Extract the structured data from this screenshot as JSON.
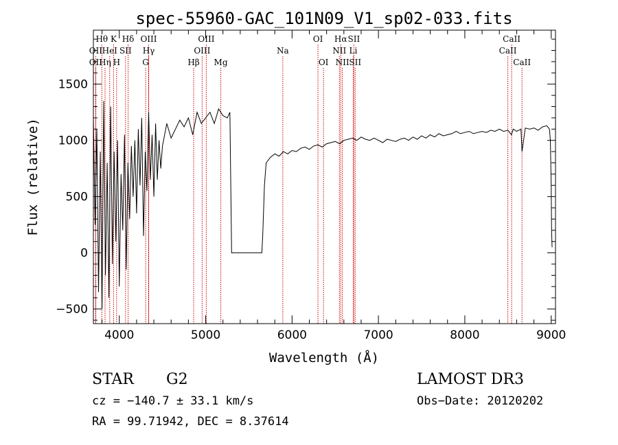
{
  "chart_data": {
    "type": "line",
    "title": "spec-55960-GAC_101N09_V1_sp02-033.fits",
    "xlabel": "Wavelength (Å)",
    "ylabel": "Flux (relative)",
    "xlim": [
      3700,
      9050
    ],
    "ylim": [
      -630,
      1980
    ],
    "x_ticks": [
      4000,
      5000,
      6000,
      7000,
      8000,
      9000
    ],
    "x_tick_labels": [
      "4000",
      "5000",
      "6000",
      "7000",
      "8000",
      "9000"
    ],
    "y_ticks": [
      -500,
      0,
      500,
      1000,
      1500
    ],
    "y_tick_labels": [
      "−500",
      "0",
      "500",
      "1000",
      "1500"
    ],
    "line_color": "#000000",
    "marker_color": "#cc0000",
    "series": [
      {
        "name": "flux",
        "x": [
          3700,
          3720,
          3740,
          3760,
          3780,
          3800,
          3820,
          3840,
          3860,
          3880,
          3900,
          3920,
          3940,
          3960,
          3980,
          4000,
          4020,
          4040,
          4060,
          4080,
          4100,
          4120,
          4140,
          4160,
          4180,
          4200,
          4220,
          4240,
          4260,
          4280,
          4300,
          4320,
          4340,
          4360,
          4380,
          4400,
          4420,
          4440,
          4460,
          4480,
          4500,
          4550,
          4600,
          4650,
          4700,
          4750,
          4800,
          4850,
          4900,
          4950,
          5000,
          5050,
          5100,
          5150,
          5200,
          5250,
          5280,
          5300,
          5320,
          5650,
          5660,
          5680,
          5700,
          5750,
          5800,
          5850,
          5900,
          5950,
          6000,
          6050,
          6100,
          6150,
          6200,
          6250,
          6300,
          6350,
          6400,
          6450,
          6500,
          6550,
          6600,
          6650,
          6700,
          6750,
          6800,
          6850,
          6900,
          6950,
          7000,
          7050,
          7100,
          7150,
          7200,
          7250,
          7300,
          7350,
          7400,
          7450,
          7500,
          7550,
          7600,
          7650,
          7700,
          7750,
          7800,
          7850,
          7900,
          7950,
          8000,
          8050,
          8100,
          8150,
          8200,
          8250,
          8300,
          8350,
          8400,
          8450,
          8500,
          8540,
          8560,
          8600,
          8650,
          8662,
          8700,
          8750,
          8800,
          8850,
          8900,
          8950,
          8980,
          8990,
          9000,
          9005,
          9010
        ],
        "values": [
          1200,
          250,
          1100,
          -350,
          900,
          -500,
          1350,
          -200,
          800,
          -400,
          1300,
          -100,
          900,
          100,
          1000,
          -300,
          700,
          200,
          1050,
          -150,
          800,
          300,
          950,
          500,
          1000,
          350,
          1100,
          600,
          1200,
          150,
          900,
          550,
          1250,
          650,
          1050,
          500,
          1150,
          650,
          1000,
          750,
          950,
          1150,
          1020,
          1100,
          1180,
          1120,
          1200,
          1050,
          1250,
          1150,
          1200,
          1250,
          1150,
          1280,
          1220,
          1200,
          1250,
          0,
          0,
          0,
          150,
          600,
          800,
          850,
          880,
          860,
          900,
          880,
          910,
          900,
          930,
          940,
          920,
          950,
          960,
          940,
          970,
          980,
          990,
          970,
          1000,
          1010,
          1020,
          1000,
          1030,
          1010,
          1000,
          1020,
          1000,
          980,
          1010,
          1000,
          990,
          1010,
          1020,
          1000,
          1030,
          1010,
          1040,
          1020,
          1050,
          1030,
          1060,
          1040,
          1050,
          1060,
          1080,
          1060,
          1070,
          1080,
          1060,
          1070,
          1080,
          1070,
          1090,
          1080,
          1100,
          1080,
          1090,
          1050,
          1100,
          1080,
          1100,
          900,
          1110,
          1100,
          1110,
          1090,
          1120,
          1130,
          1100,
          1000,
          600,
          200,
          50
        ]
      }
    ],
    "line_markers": [
      {
        "label": "Hθ",
        "x": 3798,
        "row": 1
      },
      {
        "label": "K",
        "x": 3934,
        "row": 1
      },
      {
        "label": "Hδ",
        "x": 4102,
        "row": 1
      },
      {
        "label": "OIII",
        "x": 4340,
        "row": 1
      },
      {
        "label": "OIII",
        "x": 5007,
        "row": 1
      },
      {
        "label": "OI",
        "x": 6300,
        "row": 1
      },
      {
        "label": "Hα",
        "x": 6563,
        "row": 1
      },
      {
        "label": "SII",
        "x": 6716,
        "row": 1
      },
      {
        "label": "CaII",
        "x": 8542,
        "row": 1
      },
      {
        "label": "OII",
        "x": 3727,
        "row": 2
      },
      {
        "label": "HeI",
        "x": 3889,
        "row": 2
      },
      {
        "label": "SII",
        "x": 4072,
        "row": 2
      },
      {
        "label": "Hγ",
        "x": 4340,
        "row": 2
      },
      {
        "label": "OIII",
        "x": 4959,
        "row": 2
      },
      {
        "label": "Na",
        "x": 5893,
        "row": 2
      },
      {
        "label": "NII",
        "x": 6548,
        "row": 2
      },
      {
        "label": "Li",
        "x": 6708,
        "row": 2
      },
      {
        "label": "CaII",
        "x": 8498,
        "row": 2
      },
      {
        "label": "OII",
        "x": 3727,
        "row": 3
      },
      {
        "label": "Hη",
        "x": 3835,
        "row": 3
      },
      {
        "label": "H",
        "x": 3969,
        "row": 3
      },
      {
        "label": "G",
        "x": 4305,
        "row": 3
      },
      {
        "label": "Hβ",
        "x": 4861,
        "row": 3
      },
      {
        "label": "Mg",
        "x": 5175,
        "row": 3
      },
      {
        "label": "OI",
        "x": 6364,
        "row": 3
      },
      {
        "label": "NII",
        "x": 6583,
        "row": 3
      },
      {
        "label": "SII",
        "x": 6731,
        "row": 3
      },
      {
        "label": "CaII",
        "x": 8662,
        "row": 3
      }
    ]
  },
  "info": {
    "object_class": "STAR",
    "subclass": "G2",
    "survey": "LAMOST DR3",
    "cz_line": "cz = −140.7 ± 33.1 km/s",
    "obs_date_line": "Obs−Date: 20120202",
    "radec_line": "RA =  99.71942, DEC =   8.37614"
  }
}
